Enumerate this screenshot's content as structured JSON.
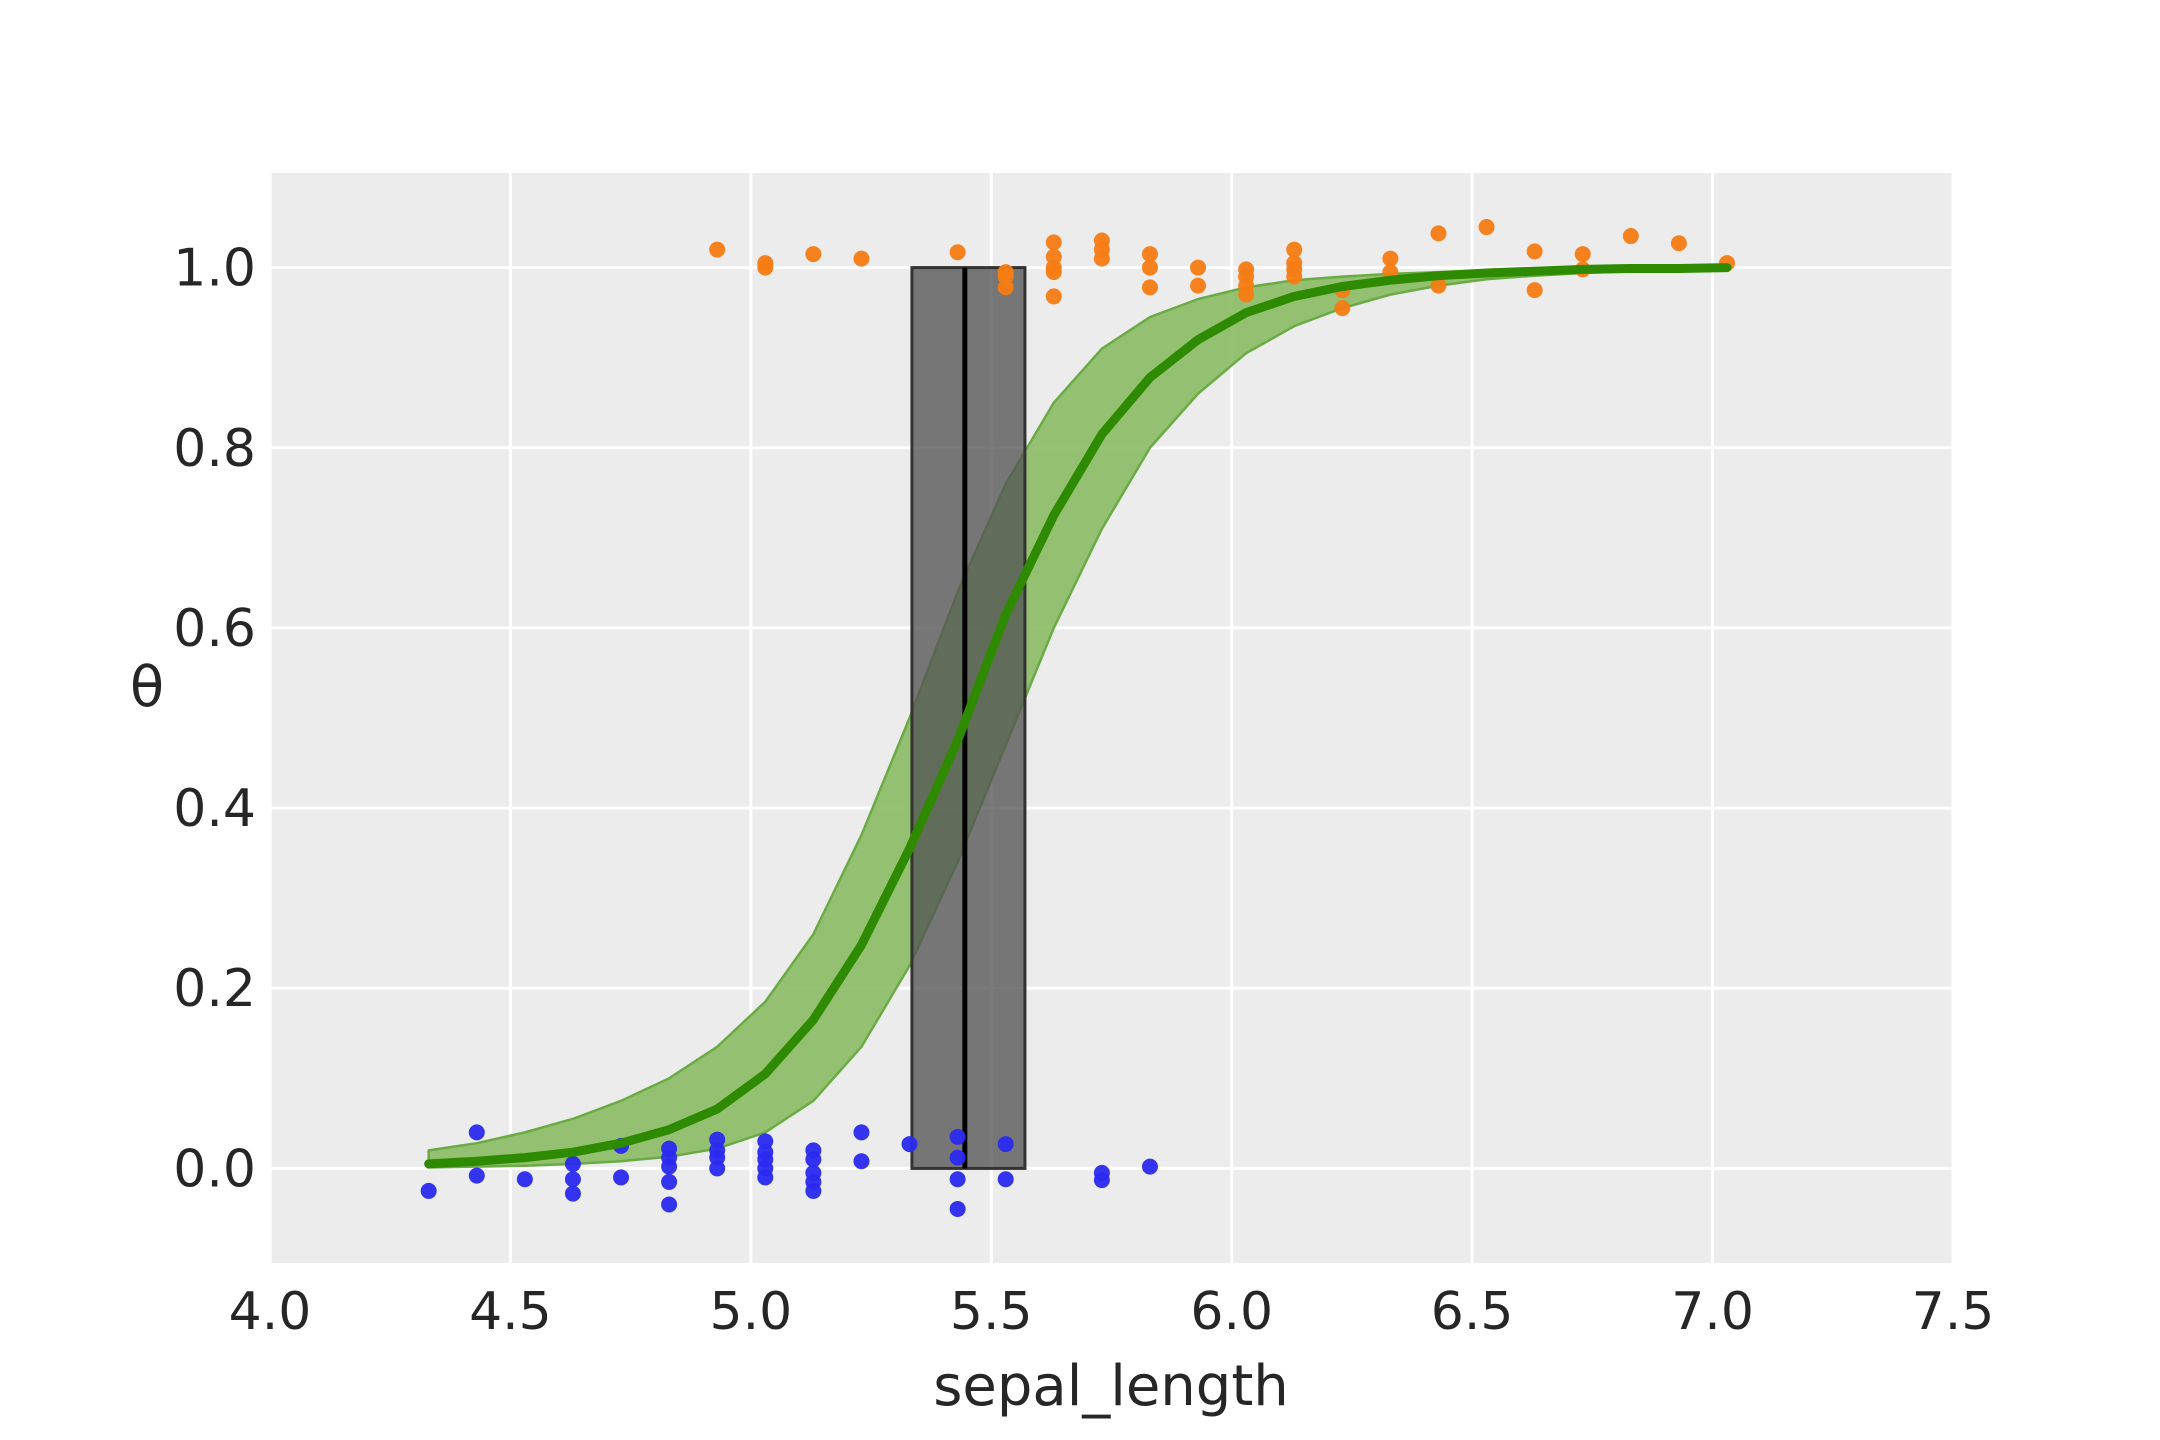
{
  "chart_data": {
    "type": "scatter",
    "title": "",
    "xlabel": "sepal_length",
    "ylabel": "θ",
    "xlim": [
      4.0,
      7.5
    ],
    "ylim": [
      -0.105,
      1.105
    ],
    "xticks": [
      "4.0",
      "4.5",
      "5.0",
      "5.5",
      "6.0",
      "6.5",
      "7.0",
      "7.5"
    ],
    "yticks": [
      "0.0",
      "0.2",
      "0.4",
      "0.6",
      "0.8",
      "1.0"
    ],
    "grid": true,
    "legend": "none",
    "colors": {
      "background": "#ececec",
      "grid": "#ffffff",
      "class0_points": "#2a2af0",
      "class1_points": "#f57c14",
      "fit_line": "#2e8b00",
      "hdi_band": "#8fbf6a",
      "boundary_band": "#555555",
      "boundary_line": "#000000"
    },
    "decision_boundary": {
      "mean": 5.445,
      "hdi": [
        5.335,
        5.57
      ],
      "y_range": [
        0.0,
        1.0
      ]
    },
    "fit_curve": {
      "x": [
        4.33,
        4.43,
        4.53,
        4.63,
        4.73,
        4.83,
        4.93,
        5.03,
        5.13,
        5.23,
        5.33,
        5.43,
        5.53,
        5.63,
        5.73,
        5.83,
        5.93,
        6.03,
        6.13,
        6.23,
        6.33,
        6.43,
        6.53,
        6.63,
        6.73,
        6.83,
        6.93,
        7.03
      ],
      "theta": [
        0.005,
        0.008,
        0.012,
        0.018,
        0.028,
        0.043,
        0.066,
        0.105,
        0.165,
        0.248,
        0.355,
        0.475,
        0.615,
        0.725,
        0.815,
        0.878,
        0.92,
        0.95,
        0.968,
        0.979,
        0.986,
        0.991,
        0.994,
        0.996,
        0.998,
        0.999,
        0.999,
        1.0
      ],
      "hdi_low": [
        0.001,
        0.002,
        0.003,
        0.005,
        0.008,
        0.013,
        0.022,
        0.04,
        0.075,
        0.135,
        0.225,
        0.34,
        0.47,
        0.6,
        0.71,
        0.8,
        0.86,
        0.905,
        0.935,
        0.955,
        0.97,
        0.98,
        0.987,
        0.991,
        0.994,
        0.996,
        0.998,
        0.999
      ],
      "hdi_high": [
        0.02,
        0.028,
        0.04,
        0.055,
        0.075,
        0.1,
        0.135,
        0.185,
        0.26,
        0.37,
        0.5,
        0.64,
        0.76,
        0.85,
        0.91,
        0.945,
        0.965,
        0.978,
        0.986,
        0.99,
        0.993,
        0.995,
        0.997,
        0.998,
        0.999,
        0.999,
        1.0,
        1.0
      ]
    },
    "series": [
      {
        "points": [
          [
            4.33,
            -0.025
          ],
          [
            4.43,
            0.04
          ],
          [
            4.43,
            -0.008
          ],
          [
            4.53,
            -0.012
          ],
          [
            4.63,
            0.005
          ],
          [
            4.63,
            -0.012
          ],
          [
            4.63,
            -0.028
          ],
          [
            4.73,
            0.025
          ],
          [
            4.73,
            -0.01
          ],
          [
            4.83,
            0.022
          ],
          [
            4.83,
            0.012
          ],
          [
            4.83,
            0.002
          ],
          [
            4.83,
            -0.015
          ],
          [
            4.83,
            -0.04
          ],
          [
            4.93,
            0.032
          ],
          [
            4.93,
            0.02
          ],
          [
            4.93,
            0.012
          ],
          [
            4.93,
            0.0
          ],
          [
            5.03,
            0.03
          ],
          [
            5.03,
            0.018
          ],
          [
            5.03,
            0.01
          ],
          [
            5.03,
            0.0
          ],
          [
            5.03,
            -0.01
          ],
          [
            5.13,
            0.02
          ],
          [
            5.13,
            0.01
          ],
          [
            5.13,
            -0.005
          ],
          [
            5.13,
            -0.015
          ],
          [
            5.13,
            -0.025
          ],
          [
            5.23,
            0.04
          ],
          [
            5.23,
            0.008
          ],
          [
            5.33,
            0.027
          ],
          [
            5.43,
            0.035
          ],
          [
            5.43,
            0.012
          ],
          [
            5.43,
            -0.012
          ],
          [
            5.43,
            -0.045
          ],
          [
            5.53,
            0.027
          ],
          [
            5.53,
            -0.012
          ],
          [
            5.73,
            -0.005
          ],
          [
            5.73,
            -0.013
          ],
          [
            5.83,
            0.002
          ]
        ]
      },
      {
        "points": [
          [
            4.93,
            1.02
          ],
          [
            5.03,
            1.005
          ],
          [
            5.03,
            1.0
          ],
          [
            5.13,
            1.015
          ],
          [
            5.23,
            1.01
          ],
          [
            5.43,
            1.017
          ],
          [
            5.53,
            0.995
          ],
          [
            5.53,
            0.99
          ],
          [
            5.53,
            0.978
          ],
          [
            5.63,
            1.028
          ],
          [
            5.63,
            1.012
          ],
          [
            5.63,
            1.0
          ],
          [
            5.63,
            0.995
          ],
          [
            5.63,
            0.968
          ],
          [
            5.73,
            1.03
          ],
          [
            5.73,
            1.02
          ],
          [
            5.73,
            1.01
          ],
          [
            5.83,
            1.015
          ],
          [
            5.83,
            1.0
          ],
          [
            5.83,
            0.978
          ],
          [
            5.93,
            1.0
          ],
          [
            5.93,
            0.98
          ],
          [
            6.03,
            0.998
          ],
          [
            6.03,
            0.99
          ],
          [
            6.03,
            0.98
          ],
          [
            6.03,
            0.97
          ],
          [
            6.13,
            1.02
          ],
          [
            6.13,
            1.005
          ],
          [
            6.13,
            0.998
          ],
          [
            6.13,
            0.99
          ],
          [
            6.23,
            0.975
          ],
          [
            6.23,
            0.955
          ],
          [
            6.33,
            1.01
          ],
          [
            6.33,
            0.995
          ],
          [
            6.43,
            1.038
          ],
          [
            6.43,
            0.98
          ],
          [
            6.53,
            1.045
          ],
          [
            6.63,
            1.018
          ],
          [
            6.63,
            0.975
          ],
          [
            6.73,
            1.015
          ],
          [
            6.73,
            0.998
          ],
          [
            6.83,
            1.035
          ],
          [
            6.93,
            1.027
          ],
          [
            7.03,
            1.005
          ]
        ]
      }
    ]
  }
}
